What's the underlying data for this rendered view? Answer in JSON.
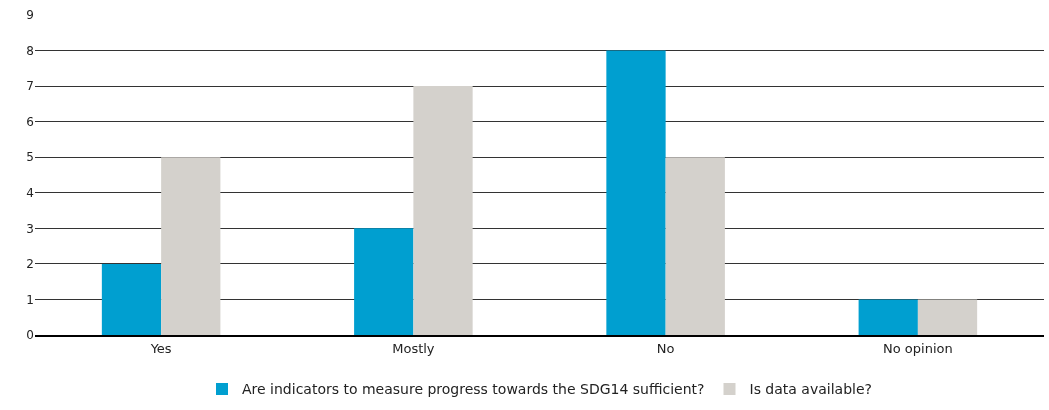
{
  "chart_data": {
    "type": "bar",
    "categories": [
      "Yes",
      "Mostly",
      "No",
      "No opinion"
    ],
    "series": [
      {
        "name": "Are indicators to measure progress towards the SDG14 sufficient?",
        "color": "#009fd0",
        "values": [
          2,
          3,
          8,
          1
        ]
      },
      {
        "name": "Is data available?",
        "color": "#d4d1cc",
        "values": [
          5,
          7,
          5,
          1
        ]
      }
    ],
    "ylim": [
      0,
      9
    ],
    "yticks": [
      0,
      1,
      2,
      3,
      4,
      5,
      6,
      7,
      8,
      9
    ],
    "grid": "y",
    "legend": "bottom"
  }
}
